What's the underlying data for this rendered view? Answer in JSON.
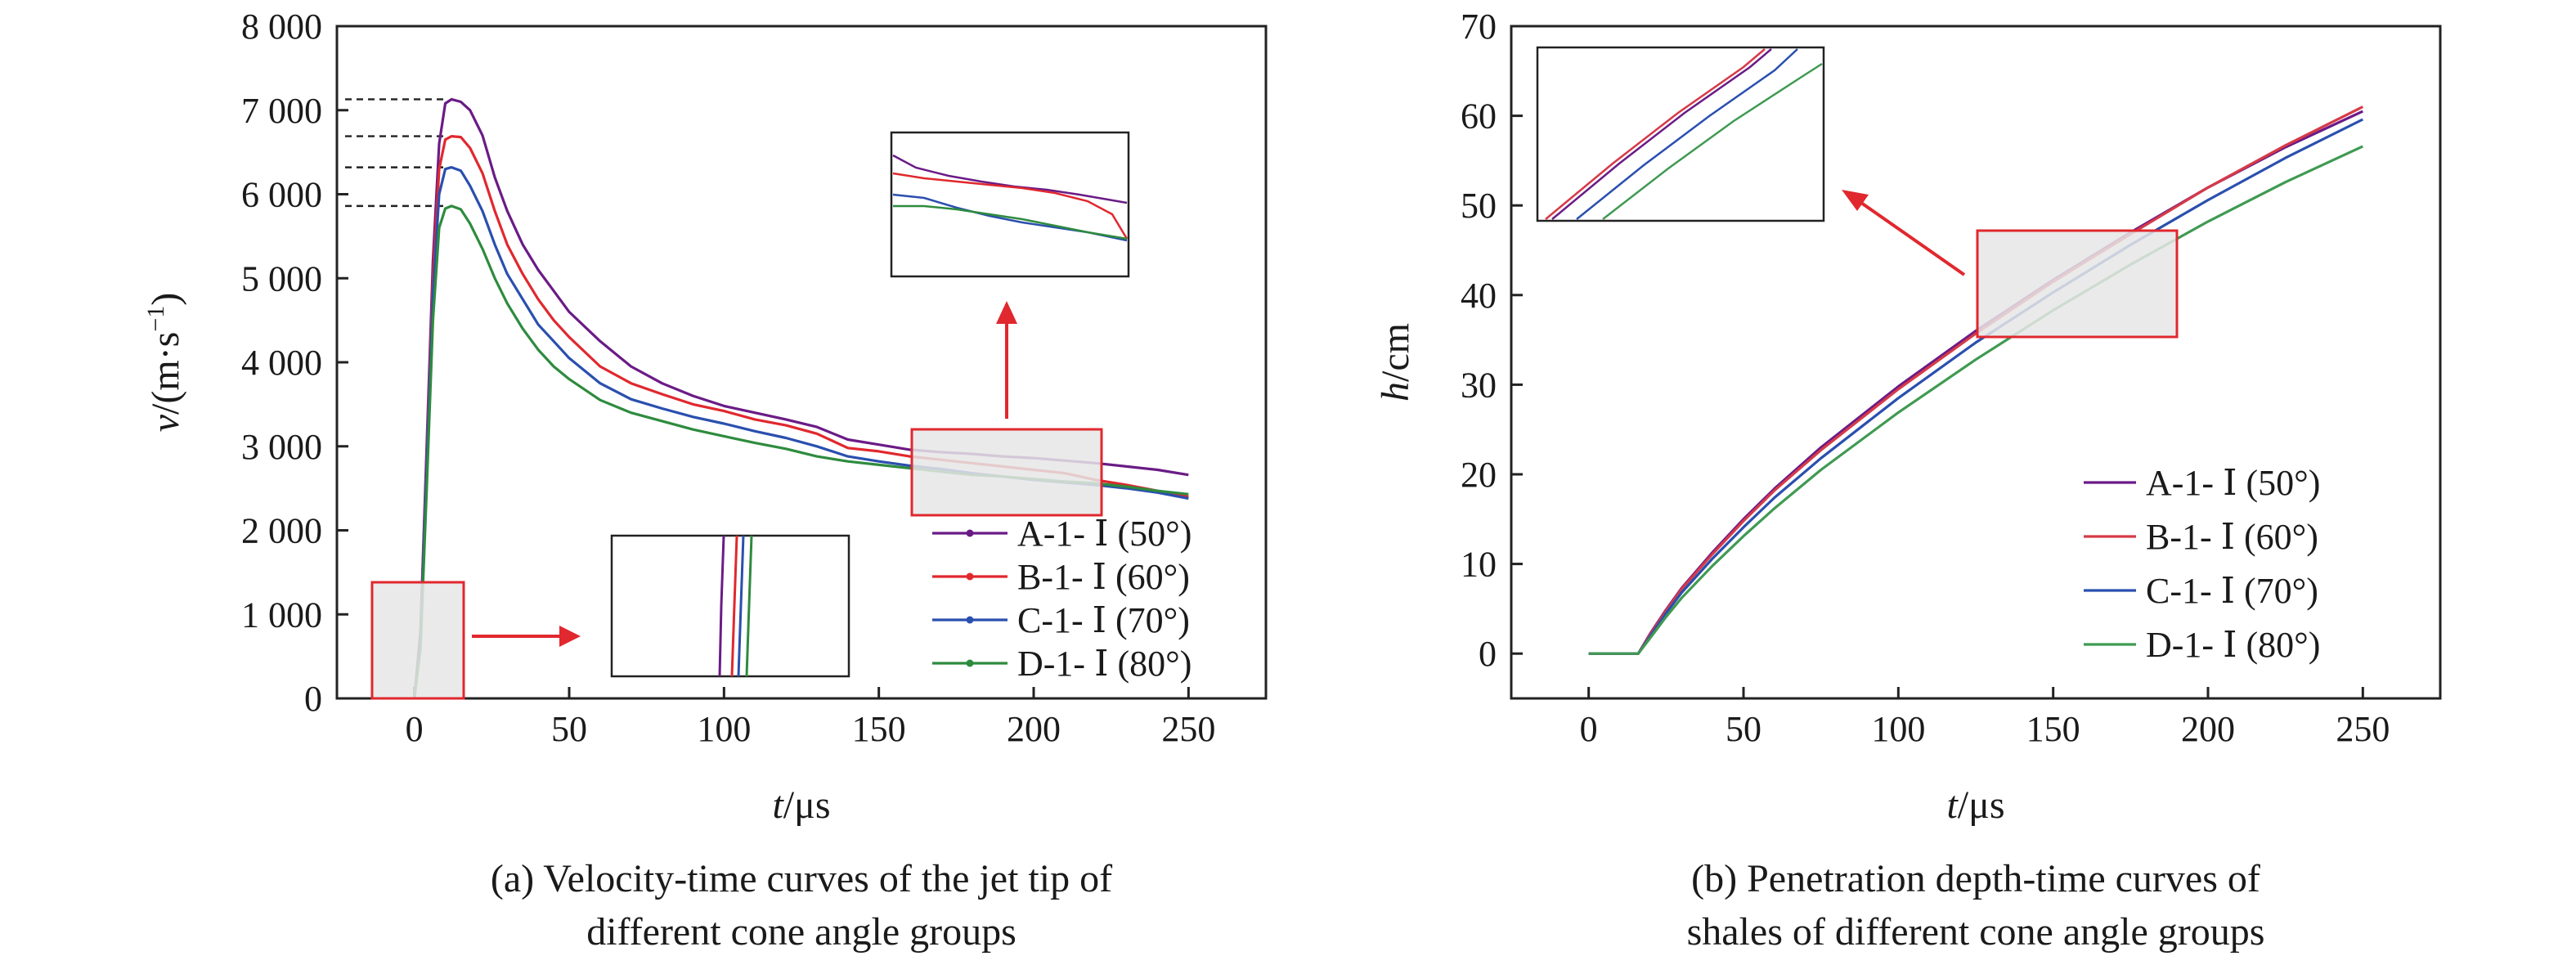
{
  "chart_data": [
    {
      "type": "line",
      "xlim": [
        -25,
        275
      ],
      "ylim": [
        0,
        8000
      ],
      "xticks": [
        0,
        50,
        100,
        150,
        200,
        250
      ],
      "yticks": [
        0,
        1000,
        2000,
        3000,
        4000,
        5000,
        6000,
        7000,
        8000
      ],
      "xtick_labels": [
        "0",
        "50",
        "100",
        "150",
        "200",
        "250"
      ],
      "ytick_labels": [
        "0",
        "1 000",
        "2 000",
        "3 000",
        "4 000",
        "5 000",
        "6 000",
        "7 000",
        "8 000"
      ],
      "xlabel": {
        "var": "t",
        "unit": "/μs"
      },
      "ylabel": {
        "var": "v",
        "unit": "/(m·s",
        "sup": "−1",
        "tail": ")"
      },
      "caption": [
        "(a) Velocity-time curves of the jet tip of",
        "different cone angle groups"
      ],
      "legend_position": "lower-right",
      "grid": false,
      "series": [
        {
          "name": "A-1- Ⅰ (50°)",
          "color": "#6a1b86",
          "x": [
            0,
            2,
            4,
            6,
            8,
            10,
            12,
            15,
            18,
            22,
            26,
            30,
            35,
            40,
            45,
            50,
            60,
            70,
            80,
            90,
            100,
            110,
            120,
            130,
            140,
            150,
            160,
            170,
            180,
            190,
            200,
            210,
            220,
            230,
            240,
            250
          ],
          "y": [
            0,
            800,
            3000,
            5200,
            6600,
            7080,
            7130,
            7100,
            7000,
            6700,
            6200,
            5800,
            5400,
            5100,
            4850,
            4600,
            4250,
            3950,
            3750,
            3600,
            3480,
            3400,
            3320,
            3230,
            3080,
            3020,
            2960,
            2930,
            2910,
            2880,
            2860,
            2830,
            2800,
            2760,
            2720,
            2660
          ]
        },
        {
          "name": "B-1- Ⅰ (60°)",
          "color": "#e0282e",
          "x": [
            0,
            2,
            4,
            6,
            8,
            10,
            12,
            15,
            18,
            22,
            26,
            30,
            35,
            40,
            45,
            50,
            60,
            70,
            80,
            90,
            100,
            110,
            120,
            130,
            140,
            150,
            160,
            170,
            180,
            190,
            200,
            210,
            220,
            230,
            240,
            250
          ],
          "y": [
            0,
            750,
            2900,
            5000,
            6300,
            6650,
            6690,
            6680,
            6550,
            6250,
            5800,
            5400,
            5050,
            4750,
            4500,
            4300,
            3950,
            3750,
            3620,
            3500,
            3420,
            3320,
            3250,
            3150,
            2980,
            2940,
            2880,
            2840,
            2800,
            2760,
            2720,
            2680,
            2600,
            2540,
            2470,
            2400
          ]
        },
        {
          "name": "C-1- Ⅰ (70°)",
          "color": "#2a4fae",
          "x": [
            0,
            2,
            4,
            6,
            8,
            10,
            12,
            15,
            18,
            22,
            26,
            30,
            35,
            40,
            45,
            50,
            60,
            70,
            80,
            90,
            100,
            110,
            120,
            130,
            140,
            150,
            160,
            170,
            180,
            190,
            200,
            210,
            220,
            230,
            240,
            250
          ],
          "y": [
            0,
            700,
            2800,
            4800,
            6000,
            6300,
            6320,
            6280,
            6100,
            5800,
            5400,
            5050,
            4750,
            4450,
            4250,
            4050,
            3750,
            3560,
            3450,
            3350,
            3270,
            3180,
            3100,
            3000,
            2880,
            2820,
            2770,
            2730,
            2680,
            2640,
            2600,
            2570,
            2540,
            2500,
            2450,
            2380
          ]
        },
        {
          "name": "D-1- Ⅰ (80°)",
          "color": "#2e8b3e",
          "x": [
            0,
            2,
            4,
            6,
            8,
            10,
            12,
            15,
            18,
            22,
            26,
            30,
            35,
            40,
            45,
            50,
            60,
            70,
            80,
            90,
            100,
            110,
            120,
            130,
            140,
            150,
            160,
            170,
            180,
            190,
            200,
            210,
            220,
            230,
            240,
            250
          ],
          "y": [
            0,
            600,
            2500,
            4500,
            5600,
            5830,
            5860,
            5820,
            5650,
            5350,
            5000,
            4700,
            4400,
            4150,
            3950,
            3800,
            3550,
            3400,
            3300,
            3200,
            3120,
            3040,
            2970,
            2880,
            2820,
            2780,
            2740,
            2700,
            2660,
            2640,
            2610,
            2580,
            2560,
            2520,
            2470,
            2430
          ]
        }
      ]
    },
    {
      "type": "line",
      "xlim": [
        -25,
        275
      ],
      "ylim": [
        -5,
        70
      ],
      "xticks": [
        0,
        50,
        100,
        150,
        200,
        250
      ],
      "yticks": [
        0,
        10,
        20,
        30,
        40,
        50,
        60,
        70
      ],
      "xtick_labels": [
        "0",
        "50",
        "100",
        "150",
        "200",
        "250"
      ],
      "ytick_labels": [
        "0",
        "10",
        "20",
        "30",
        "40",
        "50",
        "60",
        "70"
      ],
      "xlabel": {
        "var": "t",
        "unit": "/μs"
      },
      "ylabel": {
        "var": "h",
        "unit": "/cm"
      },
      "caption": [
        "(b) Penetration depth-time curves of",
        "shales of different cone angle groups"
      ],
      "legend_position": "lower-right",
      "grid": false,
      "series": [
        {
          "name": "A-1- Ⅰ (50°)",
          "color": "#6a1b86",
          "x": [
            0,
            16,
            20,
            25,
            30,
            40,
            50,
            60,
            75,
            100,
            125,
            150,
            175,
            200,
            225,
            250
          ],
          "y": [
            0,
            0,
            2.3,
            4.9,
            7.3,
            11.3,
            15.0,
            18.4,
            23.0,
            29.8,
            36.0,
            41.7,
            47.0,
            52.0,
            56.5,
            60.5
          ]
        },
        {
          "name": "B-1- Ⅰ (60°)",
          "color": "#d63a48",
          "x": [
            0,
            16,
            20,
            25,
            30,
            40,
            50,
            60,
            75,
            100,
            125,
            150,
            175,
            200,
            225,
            250
          ],
          "y": [
            0,
            0,
            2.2,
            4.8,
            7.2,
            11.1,
            14.8,
            18.2,
            22.7,
            29.5,
            35.7,
            41.5,
            46.8,
            52.0,
            56.7,
            61.0
          ]
        },
        {
          "name": "C-1- Ⅰ (70°)",
          "color": "#2a4fae",
          "x": [
            0,
            16,
            20,
            25,
            30,
            40,
            50,
            60,
            75,
            100,
            125,
            150,
            175,
            200,
            225,
            250
          ],
          "y": [
            0,
            0,
            2.0,
            4.5,
            6.8,
            10.6,
            14.1,
            17.4,
            21.8,
            28.5,
            34.7,
            40.3,
            45.6,
            50.6,
            55.3,
            59.6
          ]
        },
        {
          "name": "D-1- Ⅰ (80°)",
          "color": "#3f9a52",
          "x": [
            0,
            16,
            20,
            25,
            30,
            40,
            50,
            60,
            75,
            100,
            125,
            150,
            175,
            200,
            225,
            250
          ],
          "y": [
            0,
            0,
            1.8,
            4.1,
            6.2,
            9.8,
            13.1,
            16.2,
            20.5,
            26.9,
            32.8,
            38.3,
            43.4,
            48.2,
            52.6,
            56.6
          ]
        }
      ]
    }
  ]
}
